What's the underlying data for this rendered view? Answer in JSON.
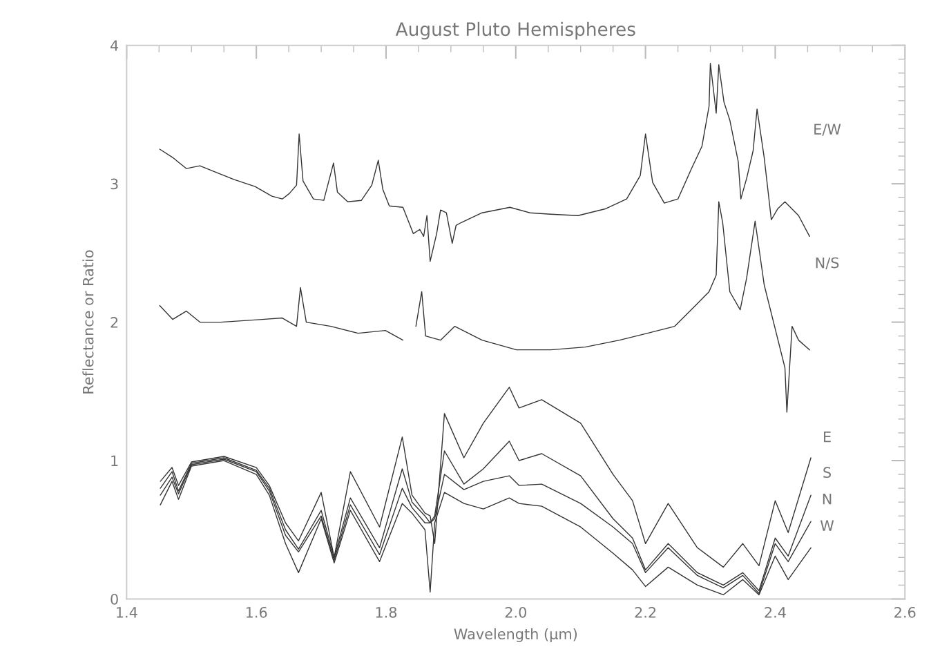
{
  "chart_data": {
    "type": "line",
    "title": "August Pluto Hemispheres",
    "xlabel": "Wavelength (μm)",
    "ylabel": "Reflectance or Ratio",
    "xlim": [
      1.4,
      2.6
    ],
    "xticks": [
      1.4,
      1.6,
      1.8,
      {
        "value": 2,
        "label": "2.0"
      },
      2.2,
      2.4,
      2.6
    ],
    "ylim": [
      0,
      4
    ],
    "yticks": [
      0,
      1,
      2,
      3,
      4
    ],
    "grid": false,
    "legend": false,
    "marker": "none",
    "line_style": "solid",
    "series": [
      {
        "name": "E/W",
        "color": "#333333",
        "x": [
          1.451,
          1.471,
          1.492,
          1.513,
          1.534,
          1.566,
          1.598,
          1.624,
          1.64,
          1.651,
          1.662,
          1.666,
          1.672,
          1.688,
          1.704,
          1.719,
          1.725,
          1.741,
          1.762,
          1.778,
          1.788,
          1.795,
          1.805,
          1.826,
          1.842,
          1.852,
          1.858,
          1.863,
          1.868,
          1.878,
          1.884,
          1.893,
          1.902,
          1.908,
          1.916,
          1.948,
          1.991,
          2.022,
          2.054,
          2.096,
          2.139,
          2.171,
          2.192,
          2.2,
          2.211,
          2.229,
          2.25,
          2.271,
          2.287,
          2.298,
          2.3,
          2.309,
          2.313,
          2.321,
          2.33,
          2.343,
          2.347,
          2.356,
          2.366,
          2.372,
          2.383,
          2.394,
          2.404,
          2.415,
          2.436,
          2.453
        ],
        "values": [
          3.25,
          3.19,
          3.11,
          3.13,
          3.09,
          3.03,
          2.98,
          2.91,
          2.89,
          2.93,
          2.99,
          3.36,
          3.02,
          2.89,
          2.88,
          3.15,
          2.94,
          2.87,
          2.88,
          2.99,
          3.17,
          2.96,
          2.84,
          2.83,
          2.64,
          2.67,
          2.62,
          2.77,
          2.44,
          2.64,
          2.81,
          2.79,
          2.57,
          2.7,
          2.72,
          2.79,
          2.83,
          2.79,
          2.78,
          2.77,
          2.82,
          2.89,
          3.06,
          3.36,
          3.01,
          2.86,
          2.89,
          3.11,
          3.27,
          3.56,
          3.87,
          3.51,
          3.86,
          3.59,
          3.46,
          3.16,
          2.89,
          3.04,
          3.24,
          3.54,
          3.19,
          2.74,
          2.82,
          2.87,
          2.77,
          2.62
        ]
      },
      {
        "name": "N/S",
        "color": "#333333",
        "x": [
          1.451,
          1.471,
          1.492,
          1.513,
          1.545,
          1.577,
          1.609,
          1.64,
          1.662,
          1.668,
          1.677,
          1.715,
          1.757,
          1.799,
          1.826,
          1.836,
          1.846,
          1.855,
          1.861,
          1.884,
          1.906,
          1.948,
          2.001,
          2.054,
          2.107,
          2.16,
          2.203,
          2.245,
          2.277,
          2.298,
          2.309,
          2.313,
          2.319,
          2.33,
          2.346,
          2.356,
          2.369,
          2.383,
          2.399,
          2.415,
          2.418,
          2.426,
          2.436,
          2.453
        ],
        "values": [
          2.12,
          2.02,
          2.08,
          2.0,
          2.0,
          2.01,
          2.02,
          2.03,
          1.97,
          2.25,
          2.0,
          1.97,
          1.92,
          1.94,
          1.87,
          null,
          1.97,
          2.22,
          1.9,
          1.87,
          1.97,
          1.87,
          1.8,
          1.8,
          1.82,
          1.87,
          1.92,
          1.97,
          2.12,
          2.22,
          2.34,
          2.87,
          2.72,
          2.22,
          2.09,
          2.32,
          2.73,
          2.27,
          1.97,
          1.67,
          1.35,
          1.97,
          1.87,
          1.8
        ]
      },
      {
        "name": "E",
        "color": "#333333",
        "x": [
          1.452,
          1.47,
          1.48,
          1.5,
          1.55,
          1.6,
          1.62,
          1.645,
          1.665,
          1.7,
          1.72,
          1.745,
          1.79,
          1.825,
          1.84,
          1.86,
          1.868,
          1.875,
          1.89,
          1.92,
          1.95,
          1.99,
          2.005,
          2.04,
          2.1,
          2.15,
          2.18,
          2.2,
          2.235,
          2.28,
          2.32,
          2.35,
          2.375,
          2.4,
          2.42,
          2.455
        ],
        "values": [
          0.85,
          0.95,
          0.82,
          0.99,
          1.03,
          0.95,
          0.82,
          0.55,
          0.42,
          0.77,
          0.3,
          0.92,
          0.52,
          1.17,
          0.75,
          0.62,
          0.6,
          0.4,
          1.34,
          1.02,
          1.27,
          1.53,
          1.38,
          1.44,
          1.27,
          0.9,
          0.71,
          0.4,
          0.69,
          0.37,
          0.23,
          0.4,
          0.24,
          0.71,
          0.48,
          1.02
        ]
      },
      {
        "name": "S",
        "color": "#333333",
        "x": [
          1.452,
          1.47,
          1.48,
          1.5,
          1.55,
          1.6,
          1.62,
          1.645,
          1.665,
          1.7,
          1.72,
          1.745,
          1.79,
          1.825,
          1.84,
          1.86,
          1.868,
          1.875,
          1.89,
          1.92,
          1.95,
          1.99,
          2.005,
          2.04,
          2.1,
          2.15,
          2.18,
          2.2,
          2.235,
          2.28,
          2.32,
          2.35,
          2.375,
          2.4,
          2.42,
          2.455
        ],
        "values": [
          0.8,
          0.92,
          0.78,
          0.98,
          1.02,
          0.93,
          0.8,
          0.5,
          0.36,
          0.64,
          0.3,
          0.73,
          0.37,
          0.94,
          0.7,
          0.6,
          0.55,
          0.6,
          1.07,
          0.83,
          0.94,
          1.14,
          1.0,
          1.05,
          0.89,
          0.58,
          0.44,
          0.21,
          0.4,
          0.19,
          0.1,
          0.19,
          0.06,
          0.44,
          0.31,
          0.75
        ]
      },
      {
        "name": "N",
        "color": "#333333",
        "x": [
          1.452,
          1.47,
          1.48,
          1.5,
          1.55,
          1.6,
          1.62,
          1.645,
          1.665,
          1.7,
          1.72,
          1.745,
          1.79,
          1.825,
          1.84,
          1.86,
          1.868,
          1.875,
          1.89,
          1.92,
          1.95,
          1.99,
          2.005,
          2.04,
          2.1,
          2.15,
          2.18,
          2.2,
          2.235,
          2.28,
          2.32,
          2.35,
          2.375,
          2.4,
          2.42,
          2.455
        ],
        "values": [
          0.75,
          0.88,
          0.76,
          0.97,
          1.01,
          0.92,
          0.78,
          0.46,
          0.34,
          0.6,
          0.28,
          0.68,
          0.32,
          0.8,
          0.66,
          0.55,
          0.55,
          0.58,
          0.9,
          0.79,
          0.85,
          0.89,
          0.82,
          0.83,
          0.69,
          0.52,
          0.4,
          0.19,
          0.37,
          0.17,
          0.08,
          0.17,
          0.04,
          0.4,
          0.27,
          0.56
        ]
      },
      {
        "name": "W",
        "color": "#333333",
        "x": [
          1.452,
          1.47,
          1.48,
          1.5,
          1.55,
          1.6,
          1.62,
          1.645,
          1.665,
          1.7,
          1.72,
          1.745,
          1.79,
          1.825,
          1.84,
          1.86,
          1.868,
          1.875,
          1.89,
          1.92,
          1.95,
          1.99,
          2.005,
          2.04,
          2.1,
          2.15,
          2.18,
          2.2,
          2.235,
          2.28,
          2.32,
          2.35,
          2.375,
          2.4,
          2.42,
          2.455
        ],
        "values": [
          0.68,
          0.85,
          0.72,
          0.96,
          1.0,
          0.9,
          0.75,
          0.4,
          0.19,
          0.58,
          0.26,
          0.64,
          0.27,
          0.69,
          0.62,
          0.5,
          0.05,
          0.55,
          0.77,
          0.69,
          0.65,
          0.73,
          0.69,
          0.67,
          0.52,
          0.33,
          0.21,
          0.09,
          0.23,
          0.1,
          0.03,
          0.14,
          0.03,
          0.31,
          0.14,
          0.37
        ]
      }
    ]
  }
}
